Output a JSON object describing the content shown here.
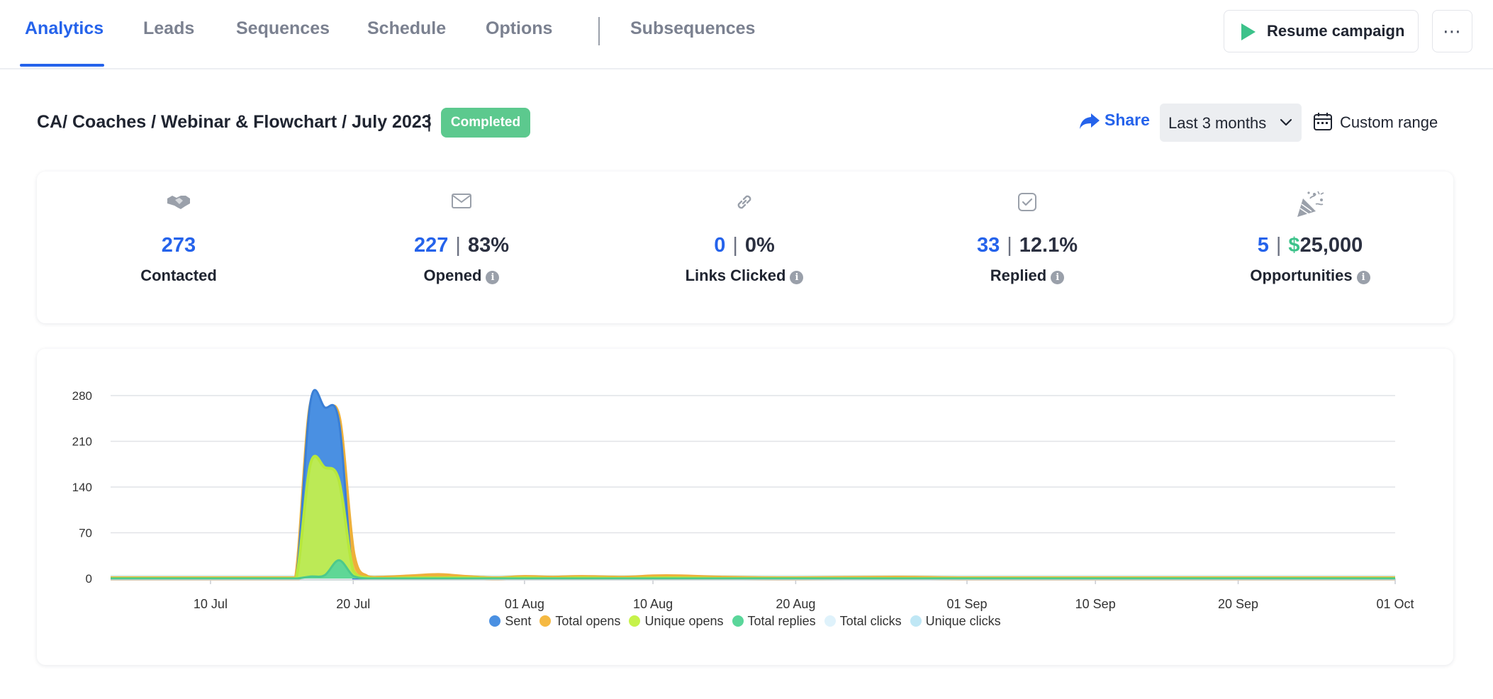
{
  "nav": {
    "tabs": [
      {
        "label": "Analytics",
        "active": true
      },
      {
        "label": "Leads",
        "active": false
      },
      {
        "label": "Sequences",
        "active": false
      },
      {
        "label": "Schedule",
        "active": false
      },
      {
        "label": "Options",
        "active": false
      },
      {
        "label": "Subsequences",
        "active": false
      }
    ],
    "resume_label": "Resume campaign",
    "more_label": "⋯"
  },
  "header": {
    "campaign_title": "CA/ Coaches / Webinar & Flowchart / July 2023",
    "separator": "|",
    "status": "Completed",
    "share_label": "Share",
    "range_value": "Last 3 months",
    "custom_range_label": "Custom range"
  },
  "stats": [
    {
      "icon": "handshake-icon",
      "value": "273",
      "label": "Contacted",
      "info": false
    },
    {
      "icon": "envelope-icon",
      "value": "227",
      "secondary": "83%",
      "label": "Opened",
      "info": true
    },
    {
      "icon": "link-icon",
      "value": "0",
      "secondary": "0%",
      "label": "Links Clicked",
      "info": true
    },
    {
      "icon": "checkbox-icon",
      "value": "33",
      "secondary": "12.1%",
      "label": "Replied",
      "info": true
    },
    {
      "icon": "party-popper-icon",
      "value": "5",
      "secondary_prefix": "$",
      "secondary": "25,000",
      "label": "Opportunities",
      "info": true
    }
  ],
  "colors": {
    "accent": "#2563eb",
    "completed": "#5cc98e",
    "sent": "#4a90e2",
    "total_opens": "#f5b942",
    "unique_opens": "#c6f24a",
    "total_replies": "#5ad69a",
    "total_clicks": "#dff2fb",
    "unique_clicks": "#bfe7f5"
  },
  "chart_data": {
    "type": "area",
    "y_ticks": [
      "0",
      "70",
      "140",
      "210",
      "280"
    ],
    "ylim": [
      0,
      280
    ],
    "x_ticks": [
      "10 Jul",
      "20 Jul",
      "01 Aug",
      "10 Aug",
      "20 Aug",
      "01 Sep",
      "10 Sep",
      "20 Sep",
      "01 Oct"
    ],
    "x": [
      "2023-07-03",
      "2023-07-15",
      "2023-07-16",
      "2023-07-17",
      "2023-07-18",
      "2023-07-19",
      "2023-07-20",
      "2023-07-21",
      "2023-07-22",
      "2023-07-24",
      "2023-07-26",
      "2023-07-28",
      "2023-07-30",
      "2023-08-01",
      "2023-08-03",
      "2023-08-05",
      "2023-08-08",
      "2023-08-10",
      "2023-08-12",
      "2023-08-15",
      "2023-08-20",
      "2023-08-27",
      "2023-09-01",
      "2023-09-10",
      "2023-09-20",
      "2023-10-01"
    ],
    "series": [
      {
        "name": "Sent",
        "values": [
          0,
          0,
          0,
          270,
          262,
          240,
          0,
          0,
          0,
          0,
          0,
          0,
          0,
          0,
          0,
          0,
          0,
          0,
          0,
          0,
          0,
          0,
          0,
          0,
          0,
          0
        ]
      },
      {
        "name": "Total opens",
        "values": [
          0,
          0,
          0,
          262,
          255,
          245,
          38,
          2,
          1,
          3,
          5,
          2,
          0,
          2,
          1,
          2,
          1,
          3,
          3,
          1,
          0,
          1,
          0,
          0,
          0,
          0
        ]
      },
      {
        "name": "Unique opens",
        "values": [
          0,
          0,
          0,
          175,
          170,
          150,
          12,
          1,
          0,
          1,
          1,
          1,
          0,
          1,
          0,
          1,
          0,
          1,
          1,
          0,
          0,
          0,
          0,
          0,
          0,
          0
        ]
      },
      {
        "name": "Total replies",
        "values": [
          0,
          0,
          0,
          3,
          5,
          28,
          4,
          0,
          0,
          0,
          0,
          0,
          0,
          0,
          0,
          0,
          0,
          0,
          0,
          0,
          0,
          0,
          0,
          0,
          0,
          0
        ]
      },
      {
        "name": "Total clicks",
        "values": [
          0,
          0,
          0,
          0,
          0,
          0,
          0,
          0,
          0,
          0,
          0,
          0,
          0,
          0,
          0,
          0,
          0,
          0,
          0,
          0,
          0,
          0,
          0,
          0,
          0,
          0
        ]
      },
      {
        "name": "Unique clicks",
        "values": [
          0,
          0,
          0,
          0,
          0,
          0,
          0,
          0,
          0,
          0,
          0,
          0,
          0,
          0,
          0,
          0,
          0,
          0,
          0,
          0,
          0,
          0,
          0,
          0,
          0,
          0
        ]
      }
    ],
    "legend_position": "bottom",
    "grid": true
  }
}
